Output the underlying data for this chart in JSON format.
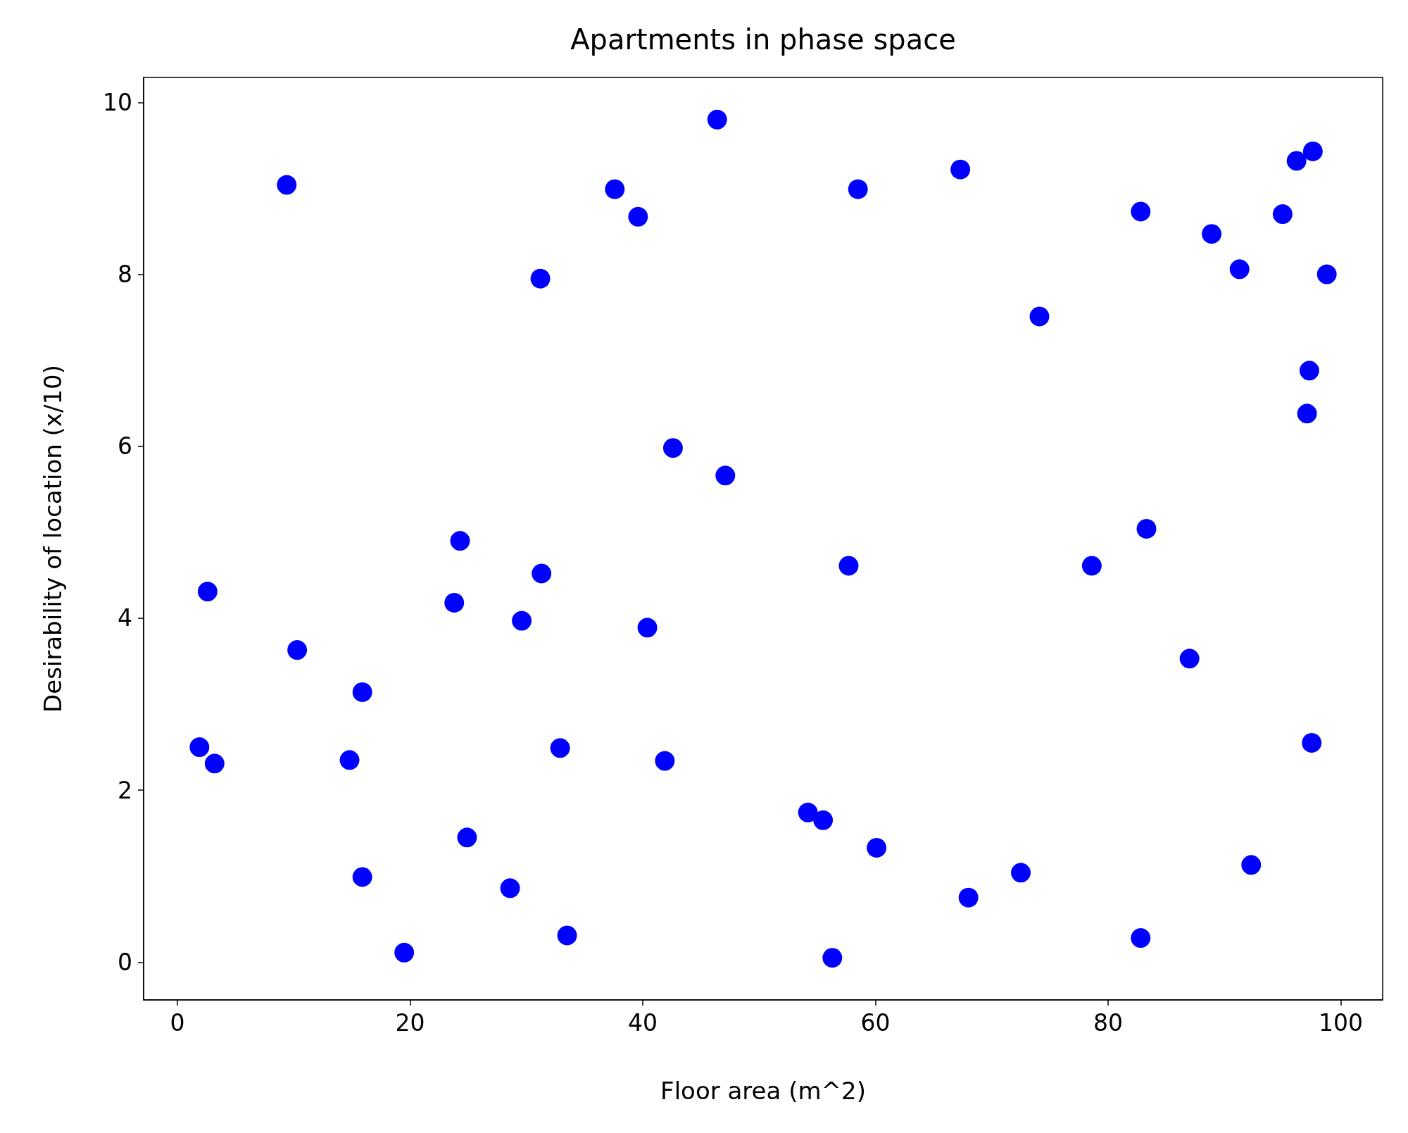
{
  "chart_data": {
    "type": "scatter",
    "title": "Apartments in phase space",
    "xlabel": "Floor area (m^2)",
    "ylabel": "Desirability of location (x/10)",
    "x": [
      9.4,
      46.4,
      37.6,
      39.6,
      31.2,
      58.5,
      67.3,
      74.1,
      82.8,
      88.9,
      91.3,
      95.0,
      96.2,
      97.6,
      98.8,
      97.3,
      97.1,
      42.6,
      47.1,
      83.3,
      57.7,
      78.6,
      87.0,
      97.5,
      2.6,
      10.3,
      15.9,
      1.9,
      3.2,
      14.8,
      24.3,
      23.8,
      31.3,
      29.6,
      40.4,
      32.9,
      41.9,
      24.9,
      15.9,
      28.6,
      19.5,
      33.5,
      54.2,
      55.5,
      60.1,
      56.3,
      68.0,
      72.5,
      92.3,
      82.8
    ],
    "series": [
      {
        "color": "#0000ff",
        "values": [
          9.04,
          9.8,
          8.99,
          8.67,
          7.95,
          8.99,
          9.22,
          7.51,
          8.73,
          8.47,
          8.06,
          8.7,
          9.32,
          9.43,
          8.0,
          6.88,
          6.38,
          5.98,
          5.66,
          5.04,
          4.61,
          4.61,
          3.53,
          2.55,
          4.31,
          3.63,
          3.14,
          2.5,
          2.31,
          2.35,
          4.9,
          4.18,
          4.52,
          3.97,
          3.89,
          2.49,
          2.34,
          1.45,
          0.99,
          0.86,
          0.11,
          0.31,
          1.74,
          1.65,
          1.33,
          0.05,
          0.75,
          1.04,
          1.13,
          0.28
        ]
      }
    ],
    "xlim": [
      -2.9,
      103.6
    ],
    "ylim": [
      -0.44,
      10.29
    ],
    "xticks": [
      0,
      20,
      40,
      60,
      80,
      100
    ],
    "yticks": [
      0,
      2,
      4,
      6,
      8,
      10
    ],
    "grid": false,
    "marker": "circle"
  }
}
